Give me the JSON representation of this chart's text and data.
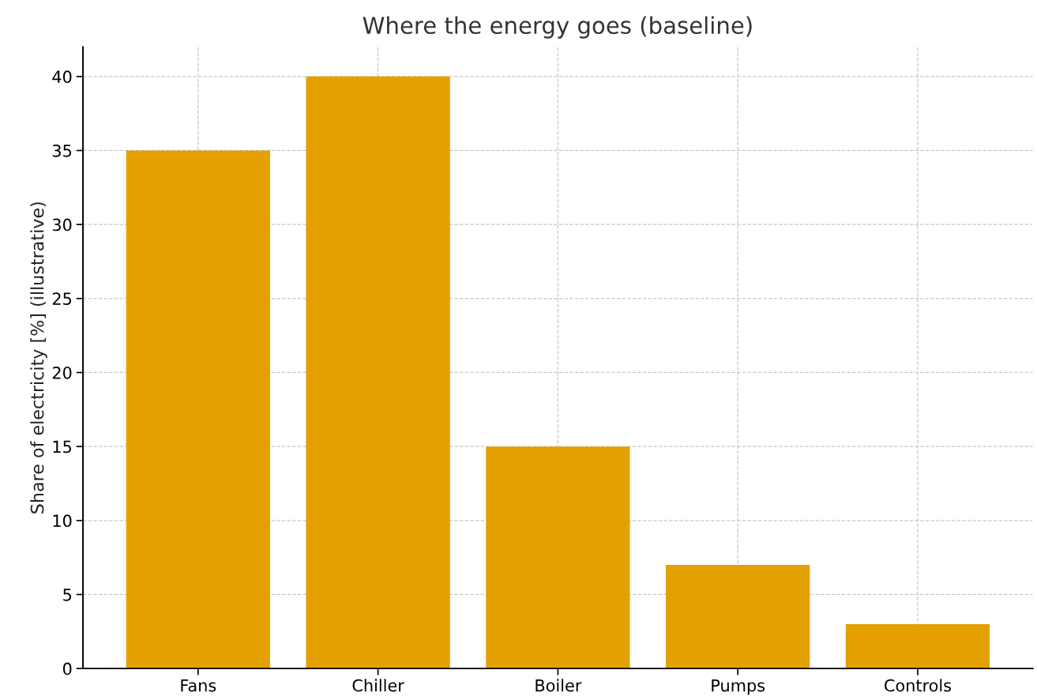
{
  "chart_data": {
    "type": "bar",
    "title": "Where the energy goes (baseline)",
    "ylabel": "Share of electricity [%] (illustrative)",
    "categories": [
      "Fans",
      "Chiller",
      "Boiler",
      "Pumps",
      "Controls"
    ],
    "values": [
      35,
      40,
      15,
      7,
      3
    ],
    "color": "#e3a000",
    "ylim": [
      0,
      42
    ],
    "yticks": [
      0,
      5,
      10,
      15,
      20,
      25,
      30,
      35,
      40
    ],
    "grid": true
  }
}
